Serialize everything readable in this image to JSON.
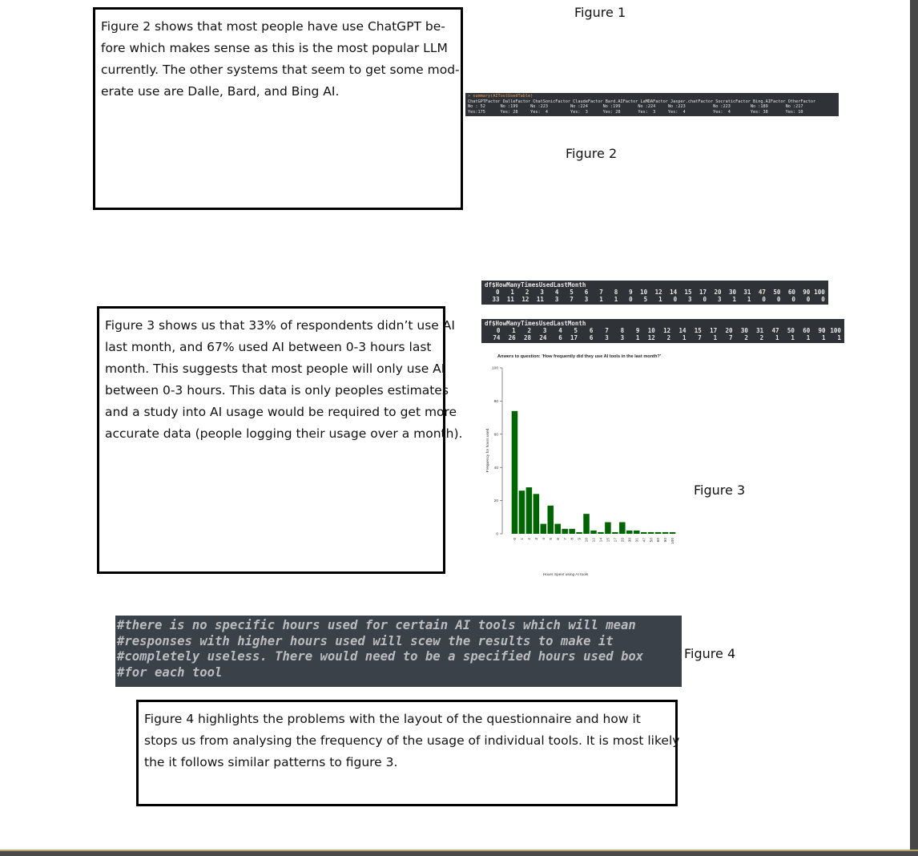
{
  "figure_labels": [
    "Figure 1",
    "Figure 2",
    "Figure 3",
    "Figure 4"
  ],
  "paragraphs": [
    [
      "Figure 2 shows that most people have use ChatGPT be-",
      "fore which makes sense as this is the most popular LLM",
      "currently. The other systems that seem to get some mod-",
      "erate use are Dalle, Bard, and Bing AI."
    ],
    [
      "Figure 3 shows us that 33% of respondents didn’t use AI",
      "last month, and 67% used AI between 0-3 hours last",
      "month. This suggests that most people will only use AI",
      "between 0-3 hours. This data is only peoples estimates",
      "and a study into AI usage would be required to get more",
      "accurate data (people logging their usage over a month)."
    ],
    [
      "Figure 4 highlights the problems with the layout of the questionnaire and how it",
      "stops us from analysing the frequency of the usage of individual tools. It is most likely",
      "the it follows similar patterns to figure 3."
    ]
  ],
  "summary_console": {
    "command": "> summary(AIToolUsedTable)",
    "lines": [
      "ChatGPTFactor DalleFactor ChatSonicFactor ClaudeFactor Bard.AIFactor LaMDAFactor Jasper.chatFactor SocraticFactor Bing.AIFactor OtherFactor",
      "No : 52      No :199     No :223         No :224      No :199       No :224     No :223           No :223        No :189       No :217",
      "Yes:175      Yes: 28     Yes:  4         Yes:  3      Yes: 28       Yes:  3     Yes:  4           Yes:  4        Yes: 38       Yes: 10"
    ]
  },
  "tables": [
    {
      "title": "df$HowManyTimesUsedLastMonth",
      "header": [
        "0",
        "1",
        "2",
        "3",
        "4",
        "5",
        "6",
        "7",
        "8",
        "9",
        "10",
        "12",
        "14",
        "15",
        "17",
        "20",
        "30",
        "31",
        "47",
        "50",
        "60",
        "90",
        "100"
      ],
      "counts": [
        "33",
        "11",
        "12",
        "11",
        "3",
        "7",
        "3",
        "1",
        "1",
        "0",
        "5",
        "1",
        "0",
        "3",
        "0",
        "3",
        "1",
        "1",
        "0",
        "0",
        "0",
        "0",
        "0"
      ]
    },
    {
      "title": "df$HowManyTimesUsedLastMonth",
      "header": [
        "0",
        "1",
        "2",
        "3",
        "4",
        "5",
        "6",
        "7",
        "8",
        "9",
        "10",
        "12",
        "14",
        "15",
        "17",
        "20",
        "30",
        "31",
        "47",
        "50",
        "60",
        "90",
        "100"
      ],
      "counts": [
        "74",
        "26",
        "28",
        "24",
        "6",
        "17",
        "6",
        "3",
        "3",
        "1",
        "12",
        "2",
        "1",
        "7",
        "1",
        "7",
        "2",
        "2",
        "1",
        "1",
        "1",
        "1",
        "1"
      ]
    }
  ],
  "code_comment": [
    "#there is no specific hours used for certain AI tools which will mean",
    "#responses with higher hours used will scew the results to make it",
    "#completely useless. There would need to be a specified hours used box",
    "#for each tool"
  ],
  "chart_data": {
    "type": "bar",
    "title": "Anwers to question: 'How frequently did they use AI tools in the last month?'",
    "x_label": "Hours Spent using AI tools",
    "y_label": "Frequency for hours used",
    "categories": [
      "0",
      "1",
      "2",
      "3",
      "4",
      "5",
      "6",
      "7",
      "8",
      "9",
      "10",
      "12",
      "14",
      "15",
      "17",
      "20",
      "30",
      "31",
      "47",
      "50",
      "60",
      "90",
      "100"
    ],
    "values": [
      74,
      26,
      28,
      24,
      6,
      17,
      6,
      3,
      3,
      1,
      12,
      2,
      1,
      7,
      1,
      7,
      2,
      2,
      1,
      1,
      1,
      1,
      1
    ],
    "color": "#006400",
    "ylim": [
      0,
      100
    ],
    "yticks": [
      0,
      20,
      40,
      60,
      80,
      100
    ]
  }
}
